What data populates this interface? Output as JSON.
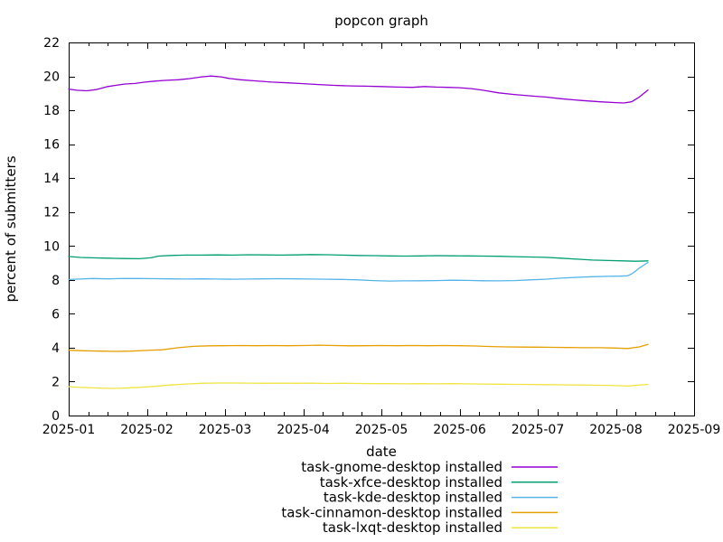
{
  "page": {
    "background": "#ffffff",
    "axis_color": "#000000",
    "text_color": "#000000"
  },
  "chart_data": {
    "type": "line",
    "title": "popcon graph",
    "xlabel": "date",
    "ylabel": "percent of submitters",
    "grid": false,
    "legend_position": "below",
    "x_unit": "months_since_2025-01",
    "xlim_months": [
      0,
      8
    ],
    "x_tick_labels": [
      "2025-01",
      "2025-02",
      "2025-03",
      "2025-04",
      "2025-05",
      "2025-06",
      "2025-07",
      "2025-08",
      "2025-09"
    ],
    "ylim": [
      0,
      22
    ],
    "y_ticks": [
      0,
      2,
      4,
      6,
      8,
      10,
      12,
      14,
      16,
      18,
      20,
      22
    ],
    "y_tick_labels": [
      "0",
      "2",
      "4",
      "6",
      "8",
      "10",
      "12",
      "14",
      "16",
      "18",
      "20",
      "22"
    ],
    "series": [
      {
        "name": "task-gnome-desktop installed",
        "color": "#9400d3",
        "points": [
          [
            0.0,
            19.25
          ],
          [
            0.1,
            19.18
          ],
          [
            0.23,
            19.15
          ],
          [
            0.35,
            19.22
          ],
          [
            0.5,
            19.4
          ],
          [
            0.6,
            19.47
          ],
          [
            0.72,
            19.55
          ],
          [
            0.85,
            19.58
          ],
          [
            0.95,
            19.65
          ],
          [
            1.1,
            19.72
          ],
          [
            1.25,
            19.77
          ],
          [
            1.4,
            19.8
          ],
          [
            1.55,
            19.87
          ],
          [
            1.7,
            19.97
          ],
          [
            1.82,
            20.02
          ],
          [
            1.95,
            19.97
          ],
          [
            2.05,
            19.88
          ],
          [
            2.2,
            19.8
          ],
          [
            2.4,
            19.73
          ],
          [
            2.6,
            19.66
          ],
          [
            2.8,
            19.62
          ],
          [
            3.0,
            19.57
          ],
          [
            3.2,
            19.52
          ],
          [
            3.4,
            19.47
          ],
          [
            3.6,
            19.44
          ],
          [
            3.8,
            19.42
          ],
          [
            4.0,
            19.4
          ],
          [
            4.2,
            19.37
          ],
          [
            4.4,
            19.35
          ],
          [
            4.55,
            19.4
          ],
          [
            4.7,
            19.37
          ],
          [
            4.85,
            19.35
          ],
          [
            5.0,
            19.33
          ],
          [
            5.15,
            19.28
          ],
          [
            5.3,
            19.18
          ],
          [
            5.5,
            19.03
          ],
          [
            5.7,
            18.93
          ],
          [
            5.9,
            18.85
          ],
          [
            6.1,
            18.78
          ],
          [
            6.3,
            18.68
          ],
          [
            6.55,
            18.58
          ],
          [
            6.8,
            18.5
          ],
          [
            7.0,
            18.45
          ],
          [
            7.1,
            18.43
          ],
          [
            7.2,
            18.5
          ],
          [
            7.3,
            18.78
          ],
          [
            7.41,
            19.2
          ]
        ]
      },
      {
        "name": "task-xfce-desktop installed",
        "color": "#009e73",
        "points": [
          [
            0.0,
            9.38
          ],
          [
            0.15,
            9.32
          ],
          [
            0.3,
            9.3
          ],
          [
            0.5,
            9.28
          ],
          [
            0.7,
            9.26
          ],
          [
            0.9,
            9.25
          ],
          [
            1.05,
            9.3
          ],
          [
            1.15,
            9.4
          ],
          [
            1.3,
            9.44
          ],
          [
            1.5,
            9.46
          ],
          [
            1.7,
            9.46
          ],
          [
            1.9,
            9.47
          ],
          [
            2.1,
            9.46
          ],
          [
            2.3,
            9.48
          ],
          [
            2.5,
            9.47
          ],
          [
            2.7,
            9.46
          ],
          [
            2.9,
            9.47
          ],
          [
            3.1,
            9.49
          ],
          [
            3.3,
            9.48
          ],
          [
            3.5,
            9.46
          ],
          [
            3.7,
            9.44
          ],
          [
            3.9,
            9.43
          ],
          [
            4.1,
            9.41
          ],
          [
            4.3,
            9.4
          ],
          [
            4.5,
            9.41
          ],
          [
            4.7,
            9.43
          ],
          [
            4.9,
            9.42
          ],
          [
            5.1,
            9.41
          ],
          [
            5.3,
            9.4
          ],
          [
            5.5,
            9.39
          ],
          [
            5.7,
            9.37
          ],
          [
            5.9,
            9.35
          ],
          [
            6.1,
            9.33
          ],
          [
            6.3,
            9.28
          ],
          [
            6.5,
            9.22
          ],
          [
            6.7,
            9.17
          ],
          [
            6.9,
            9.14
          ],
          [
            7.1,
            9.12
          ],
          [
            7.25,
            9.1
          ],
          [
            7.41,
            9.12
          ]
        ]
      },
      {
        "name": "task-kde-desktop installed",
        "color": "#56b4e9",
        "points": [
          [
            0.0,
            8.02
          ],
          [
            0.15,
            8.05
          ],
          [
            0.3,
            8.08
          ],
          [
            0.5,
            8.06
          ],
          [
            0.7,
            8.08
          ],
          [
            0.9,
            8.08
          ],
          [
            1.1,
            8.07
          ],
          [
            1.3,
            8.06
          ],
          [
            1.5,
            8.05
          ],
          [
            1.7,
            8.06
          ],
          [
            1.9,
            8.05
          ],
          [
            2.1,
            8.04
          ],
          [
            2.3,
            8.05
          ],
          [
            2.5,
            8.06
          ],
          [
            2.7,
            8.07
          ],
          [
            2.9,
            8.06
          ],
          [
            3.1,
            8.05
          ],
          [
            3.3,
            8.04
          ],
          [
            3.5,
            8.03
          ],
          [
            3.7,
            8.0
          ],
          [
            3.9,
            7.96
          ],
          [
            4.1,
            7.93
          ],
          [
            4.3,
            7.94
          ],
          [
            4.5,
            7.95
          ],
          [
            4.7,
            7.96
          ],
          [
            4.9,
            7.98
          ],
          [
            5.1,
            7.97
          ],
          [
            5.3,
            7.95
          ],
          [
            5.5,
            7.94
          ],
          [
            5.7,
            7.96
          ],
          [
            5.9,
            8.0
          ],
          [
            6.1,
            8.04
          ],
          [
            6.3,
            8.1
          ],
          [
            6.5,
            8.15
          ],
          [
            6.7,
            8.19
          ],
          [
            6.9,
            8.21
          ],
          [
            7.05,
            8.22
          ],
          [
            7.15,
            8.24
          ],
          [
            7.22,
            8.4
          ],
          [
            7.3,
            8.7
          ],
          [
            7.41,
            9.03
          ]
        ]
      },
      {
        "name": "task-cinnamon-desktop installed",
        "color": "#e69f00",
        "points": [
          [
            0.0,
            3.85
          ],
          [
            0.2,
            3.82
          ],
          [
            0.4,
            3.8
          ],
          [
            0.6,
            3.78
          ],
          [
            0.8,
            3.8
          ],
          [
            1.0,
            3.84
          ],
          [
            1.2,
            3.88
          ],
          [
            1.4,
            4.0
          ],
          [
            1.6,
            4.08
          ],
          [
            1.8,
            4.11
          ],
          [
            2.0,
            4.12
          ],
          [
            2.2,
            4.13
          ],
          [
            2.4,
            4.12
          ],
          [
            2.6,
            4.13
          ],
          [
            2.8,
            4.12
          ],
          [
            3.0,
            4.13
          ],
          [
            3.2,
            4.15
          ],
          [
            3.4,
            4.13
          ],
          [
            3.6,
            4.11
          ],
          [
            3.8,
            4.12
          ],
          [
            4.0,
            4.13
          ],
          [
            4.2,
            4.12
          ],
          [
            4.4,
            4.13
          ],
          [
            4.6,
            4.12
          ],
          [
            4.8,
            4.13
          ],
          [
            5.0,
            4.12
          ],
          [
            5.2,
            4.1
          ],
          [
            5.4,
            4.07
          ],
          [
            5.6,
            4.05
          ],
          [
            5.8,
            4.04
          ],
          [
            6.0,
            4.03
          ],
          [
            6.2,
            4.02
          ],
          [
            6.4,
            4.01
          ],
          [
            6.6,
            4.0
          ],
          [
            6.8,
            4.0
          ],
          [
            7.0,
            3.98
          ],
          [
            7.15,
            3.95
          ],
          [
            7.3,
            4.05
          ],
          [
            7.41,
            4.2
          ]
        ]
      },
      {
        "name": "task-lxqt-desktop installed",
        "color": "#f0e442",
        "points": [
          [
            0.0,
            1.7
          ],
          [
            0.2,
            1.65
          ],
          [
            0.4,
            1.62
          ],
          [
            0.55,
            1.6
          ],
          [
            0.7,
            1.62
          ],
          [
            0.9,
            1.66
          ],
          [
            1.1,
            1.72
          ],
          [
            1.3,
            1.8
          ],
          [
            1.5,
            1.86
          ],
          [
            1.7,
            1.9
          ],
          [
            1.9,
            1.92
          ],
          [
            2.1,
            1.92
          ],
          [
            2.3,
            1.91
          ],
          [
            2.5,
            1.9
          ],
          [
            2.7,
            1.91
          ],
          [
            2.9,
            1.9
          ],
          [
            3.1,
            1.91
          ],
          [
            3.3,
            1.89
          ],
          [
            3.5,
            1.9
          ],
          [
            3.7,
            1.89
          ],
          [
            3.9,
            1.88
          ],
          [
            4.1,
            1.88
          ],
          [
            4.3,
            1.87
          ],
          [
            4.5,
            1.88
          ],
          [
            4.7,
            1.87
          ],
          [
            4.9,
            1.88
          ],
          [
            5.1,
            1.87
          ],
          [
            5.3,
            1.86
          ],
          [
            5.5,
            1.85
          ],
          [
            5.7,
            1.84
          ],
          [
            5.9,
            1.83
          ],
          [
            6.1,
            1.82
          ],
          [
            6.3,
            1.81
          ],
          [
            6.5,
            1.8
          ],
          [
            6.7,
            1.79
          ],
          [
            6.9,
            1.78
          ],
          [
            7.05,
            1.76
          ],
          [
            7.15,
            1.74
          ],
          [
            7.25,
            1.78
          ],
          [
            7.41,
            1.84
          ]
        ]
      }
    ]
  }
}
